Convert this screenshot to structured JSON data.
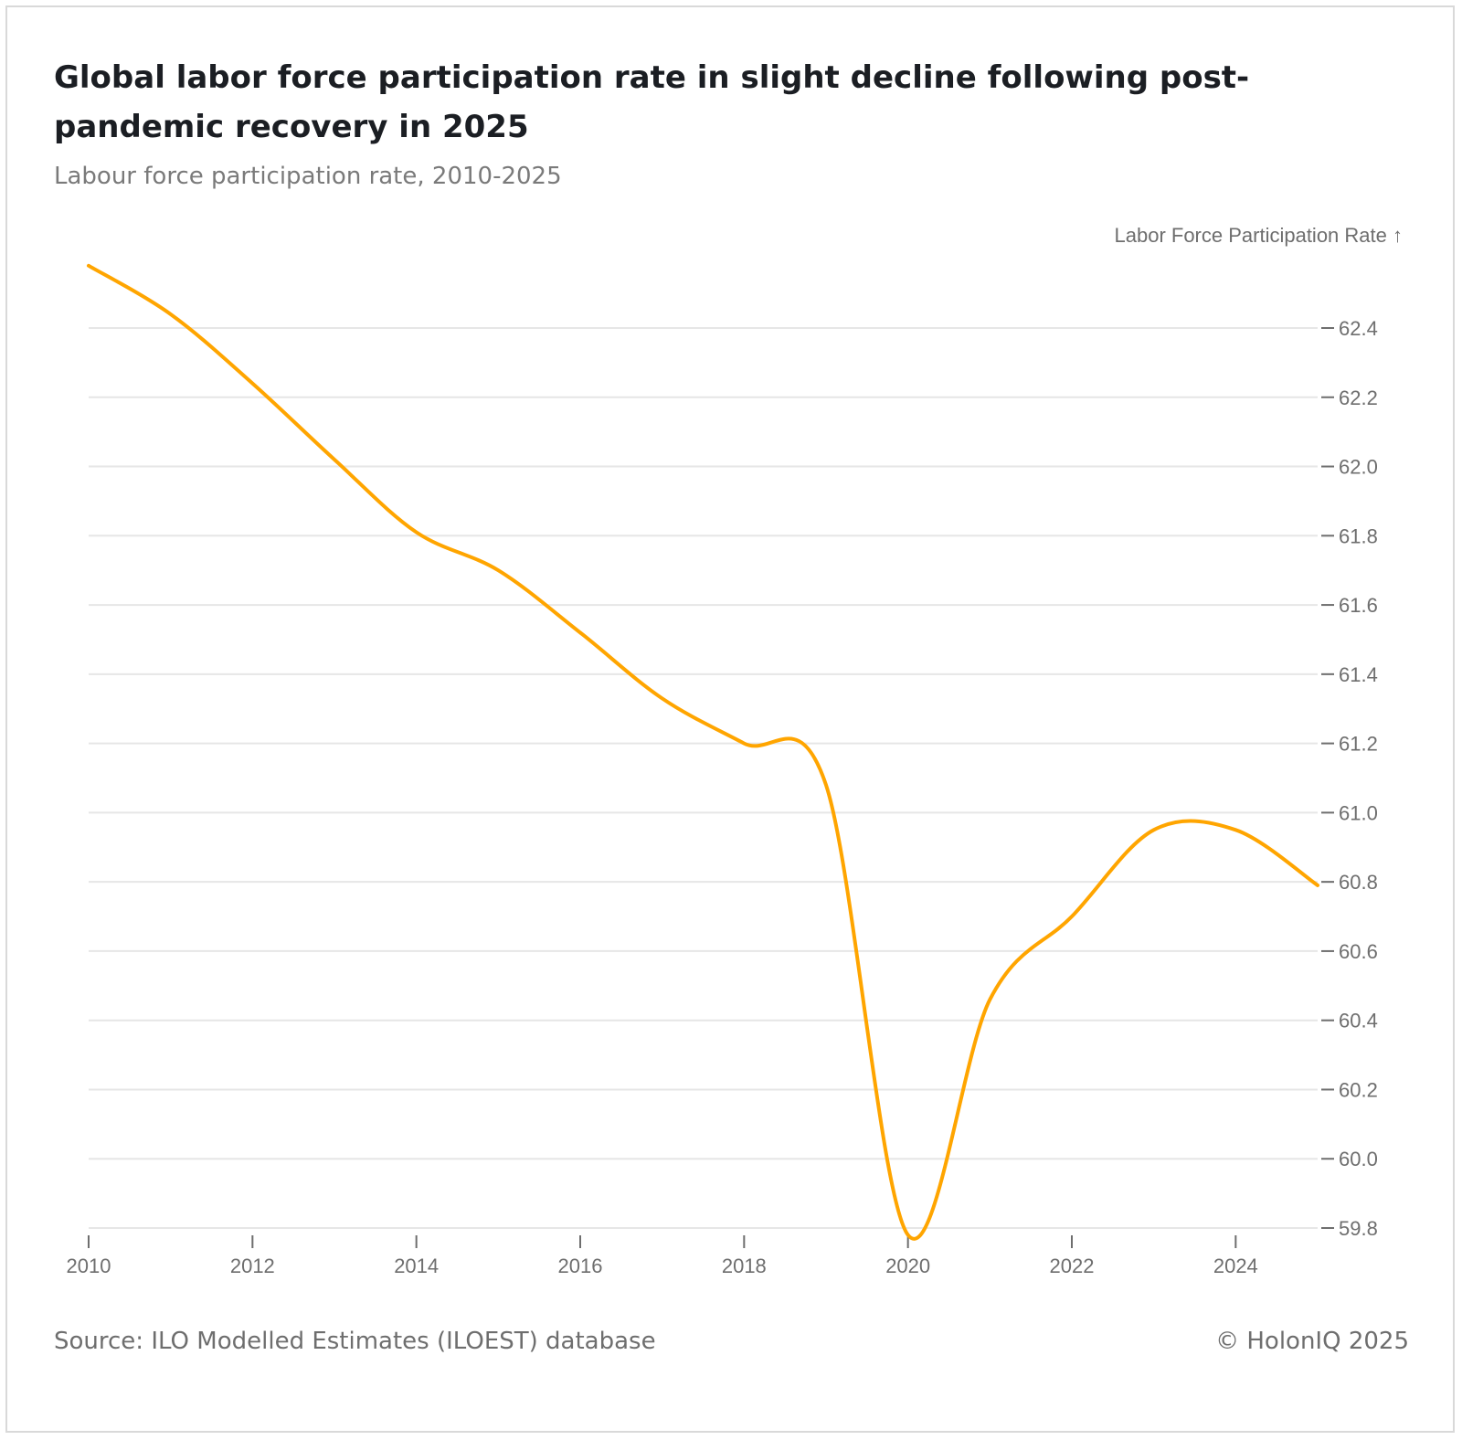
{
  "header": {
    "title": "Global labor force participation rate in slight decline following post-pandemic recovery in 2025",
    "subtitle": "Labour force participation rate, 2010-2025"
  },
  "footer": {
    "source": "Source: ILO Modelled Estimates (ILOEST) database",
    "credit": "© HolonIQ 2025"
  },
  "colors": {
    "line": "#ffa500",
    "grid": "#e6e6e6",
    "text": "#6e6e6e"
  },
  "chart_data": {
    "type": "line",
    "title": "Global labor force participation rate in slight decline following post-pandemic recovery in 2025",
    "subtitle": "Labour force participation rate, 2010-2025",
    "xlabel": "",
    "ylabel": "Labor Force Participation Rate ↑",
    "x": [
      2010,
      2011,
      2012,
      2013,
      2014,
      2015,
      2016,
      2017,
      2018,
      2019,
      2020,
      2021,
      2022,
      2023,
      2024,
      2025
    ],
    "series": [
      {
        "name": "Labor Force Participation Rate",
        "values": [
          62.58,
          62.44,
          62.24,
          62.02,
          61.81,
          61.7,
          61.52,
          61.33,
          61.2,
          61.08,
          59.78,
          60.46,
          60.7,
          60.95,
          60.95,
          60.79
        ]
      }
    ],
    "xlim": [
      2010,
      2025
    ],
    "ylim": [
      59.8,
      62.4
    ],
    "xticks": [
      "2010",
      "2012",
      "2014",
      "2016",
      "2018",
      "2020",
      "2022",
      "2024"
    ],
    "yticks": [
      "59.8",
      "60.0",
      "60.2",
      "60.4",
      "60.6",
      "60.8",
      "61.0",
      "61.2",
      "61.4",
      "61.6",
      "61.8",
      "62.0",
      "62.2",
      "62.4"
    ],
    "grid": true,
    "yaxis_position": "right"
  }
}
